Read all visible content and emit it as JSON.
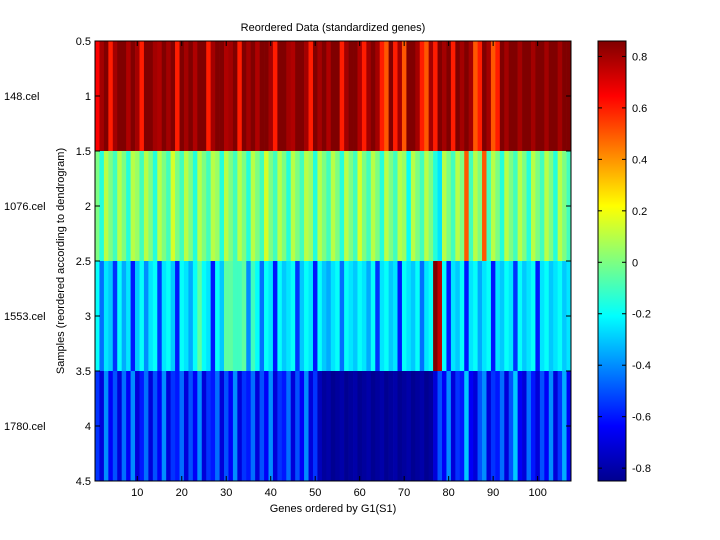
{
  "chart_data": {
    "type": "heatmap",
    "title": "Reordered Data (standardized genes)",
    "xlabel": "Genes ordered by G1(S1)",
    "ylabel": "Samples (reordered according to dendrogram)",
    "row_labels": [
      "148.cel",
      "1076.cel",
      "1553.cel",
      "1780.cel"
    ],
    "x_range": [
      0.5,
      107.5
    ],
    "y_range": [
      0.5,
      4.5
    ],
    "x_ticks": [
      10,
      20,
      30,
      40,
      50,
      60,
      70,
      80,
      90,
      100
    ],
    "y_ticks": [
      0.5,
      1,
      1.5,
      2,
      2.5,
      3,
      3.5,
      4,
      4.5
    ],
    "colorbar": {
      "colormap": "jet",
      "range": [
        -0.85,
        0.86
      ],
      "ticks": [
        0.8,
        0.6,
        0.4,
        0.2,
        0,
        -0.2,
        -0.4,
        -0.6,
        -0.8
      ]
    },
    "num_genes": 107,
    "rows": [
      [
        0.65,
        0.8,
        0.86,
        0.6,
        0.8,
        0.86,
        0.86,
        0.78,
        0.86,
        0.8,
        0.6,
        0.86,
        0.86,
        0.8,
        0.78,
        0.86,
        0.8,
        0.86,
        0.6,
        0.86,
        0.8,
        0.86,
        0.78,
        0.86,
        0.86,
        0.6,
        0.8,
        0.86,
        0.86,
        0.78,
        0.8,
        0.86,
        0.6,
        0.86,
        0.8,
        0.86,
        0.78,
        0.86,
        0.86,
        0.8,
        0.6,
        0.86,
        0.86,
        0.8,
        0.78,
        0.86,
        0.86,
        0.8,
        0.6,
        0.86,
        0.8,
        0.86,
        0.78,
        0.86,
        0.86,
        0.6,
        0.8,
        0.86,
        0.86,
        0.78,
        0.6,
        0.8,
        0.86,
        0.8,
        0.6,
        0.5,
        0.86,
        0.6,
        0.8,
        0.5,
        0.86,
        0.86,
        0.8,
        0.6,
        0.5,
        0.8,
        0.6,
        0.86,
        0.8,
        0.86,
        0.6,
        0.86,
        0.8,
        0.86,
        0.8,
        0.5,
        0.6,
        0.86,
        0.8,
        0.5,
        0.6,
        0.86,
        0.8,
        0.86,
        0.86,
        0.8,
        0.86,
        0.86,
        0.8,
        0.86,
        0.86,
        0.8,
        0.86,
        0.86,
        0.8,
        0.86,
        0.86
      ],
      [
        0.0,
        -0.15,
        0.1,
        0.0,
        -0.1,
        0.1,
        0.0,
        -0.15,
        0.1,
        0.05,
        -0.1,
        0.1,
        0.0,
        -0.15,
        0.1,
        0.0,
        -0.1,
        0.15,
        0.0,
        -0.1,
        0.1,
        0.0,
        -0.15,
        0.1,
        0.0,
        -0.1,
        0.1,
        0.05,
        -0.15,
        0.1,
        0.0,
        -0.1,
        0.1,
        0.0,
        -0.15,
        0.1,
        0.0,
        -0.1,
        0.15,
        0.0,
        -0.1,
        0.1,
        0.0,
        -0.15,
        0.1,
        0.0,
        -0.1,
        0.1,
        0.05,
        -0.15,
        0.1,
        0.0,
        -0.1,
        0.1,
        0.0,
        -0.15,
        0.1,
        0.0,
        -0.1,
        0.15,
        0.0,
        -0.1,
        0.1,
        0.0,
        -0.15,
        0.1,
        0.0,
        -0.1,
        0.1,
        0.05,
        -0.2,
        0.1,
        0.0,
        -0.1,
        0.1,
        0.0,
        -0.15,
        -0.25,
        0.1,
        0.0,
        -0.1,
        0.1,
        0.0,
        0.5,
        -0.1,
        0.1,
        0.0,
        0.5,
        -0.1,
        0.1,
        0.0,
        -0.15,
        0.1,
        0.0,
        -0.1,
        0.1,
        0.0,
        -0.15,
        0.1,
        0.0,
        -0.1,
        0.1,
        0.0,
        -0.15,
        0.1,
        0.0,
        -0.1
      ],
      [
        -0.2,
        -0.45,
        -0.25,
        -0.3,
        -0.55,
        -0.2,
        -0.35,
        -0.25,
        -0.6,
        -0.3,
        -0.2,
        -0.4,
        -0.25,
        -0.2,
        -0.55,
        -0.25,
        -0.2,
        -0.3,
        -0.6,
        -0.2,
        -0.25,
        -0.35,
        -0.2,
        -0.05,
        -0.2,
        -0.25,
        -0.6,
        -0.2,
        -0.3,
        -0.05,
        -0.05,
        -0.1,
        -0.1,
        -0.05,
        -0.4,
        -0.1,
        -0.2,
        -0.45,
        -0.2,
        -0.25,
        -0.6,
        -0.2,
        -0.3,
        -0.25,
        -0.2,
        -0.55,
        -0.3,
        -0.2,
        -0.25,
        -0.6,
        -0.2,
        -0.3,
        -0.35,
        -0.25,
        -0.2,
        -0.45,
        -0.2,
        -0.25,
        -0.3,
        -0.2,
        -0.25,
        -0.35,
        -0.2,
        -0.55,
        -0.25,
        -0.2,
        -0.3,
        -0.25,
        -0.6,
        -0.2,
        -0.25,
        -0.3,
        -0.2,
        -0.45,
        -0.25,
        -0.2,
        0.86,
        0.75,
        -0.2,
        -0.6,
        -0.25,
        -0.3,
        -0.2,
        -0.6,
        -0.25,
        -0.2,
        -0.35,
        -0.25,
        -0.2,
        -0.6,
        -0.25,
        -0.3,
        -0.2,
        -0.25,
        -0.55,
        -0.2,
        -0.3,
        -0.25,
        -0.2,
        -0.6,
        -0.25,
        -0.2,
        -0.3,
        -0.25,
        -0.2,
        -0.3,
        -0.25
      ],
      [
        -0.55,
        -0.7,
        -0.4,
        -0.65,
        -0.5,
        -0.7,
        -0.45,
        -0.65,
        -0.4,
        -0.7,
        -0.6,
        -0.45,
        -0.7,
        -0.5,
        -0.65,
        -0.4,
        -0.7,
        -0.55,
        -0.6,
        -0.45,
        -0.7,
        -0.5,
        -0.65,
        -0.4,
        -0.7,
        -0.55,
        -0.6,
        -0.45,
        -0.7,
        -0.5,
        -0.65,
        -0.4,
        -0.7,
        -0.55,
        -0.6,
        -0.45,
        -0.7,
        -0.5,
        -0.65,
        -0.4,
        -0.7,
        -0.55,
        -0.6,
        -0.45,
        -0.7,
        -0.5,
        -0.65,
        -0.4,
        -0.7,
        -0.55,
        -0.75,
        -0.8,
        -0.78,
        -0.82,
        -0.8,
        -0.78,
        -0.82,
        -0.8,
        -0.78,
        -0.82,
        -0.8,
        -0.78,
        -0.82,
        -0.8,
        -0.78,
        -0.82,
        -0.8,
        -0.78,
        -0.82,
        -0.8,
        -0.78,
        -0.82,
        -0.8,
        -0.78,
        -0.82,
        -0.8,
        -0.7,
        -0.5,
        -0.65,
        -0.4,
        -0.7,
        -0.55,
        -0.6,
        -0.3,
        -0.65,
        -0.7,
        -0.5,
        -0.4,
        -0.7,
        -0.55,
        -0.6,
        -0.45,
        -0.7,
        -0.5,
        -0.3,
        -0.65,
        -0.7,
        -0.45,
        -0.6,
        -0.7,
        -0.5,
        -0.65,
        -0.4,
        -0.7,
        -0.55,
        -0.35,
        -0.65
      ]
    ]
  }
}
